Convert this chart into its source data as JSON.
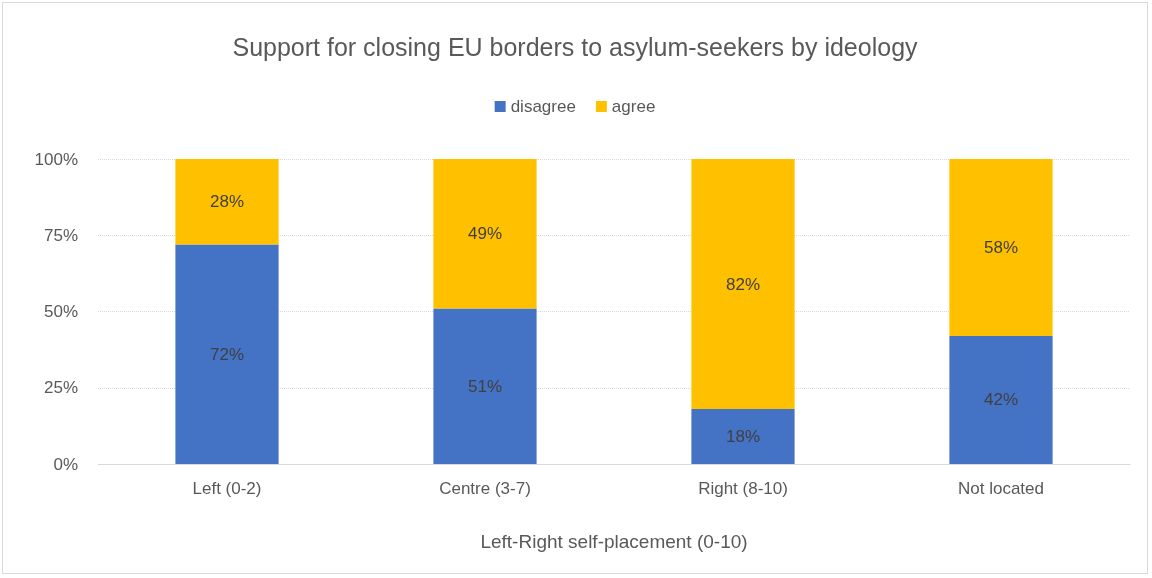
{
  "chart_data": {
    "type": "bar",
    "title": "Support for closing EU borders to asylum-seekers by ideology",
    "xlabel": "Left-Right self-placement (0-10)",
    "categories": [
      "Left (0-2)",
      "Centre (3-7)",
      "Right (8-10)",
      "Not located"
    ],
    "series": [
      {
        "name": "disagree",
        "color": "#4472c4",
        "values": [
          72,
          51,
          18,
          42
        ],
        "value_labels": [
          "72%",
          "51%",
          "18%",
          "42%"
        ]
      },
      {
        "name": "agree",
        "color": "#ffc000",
        "values": [
          28,
          49,
          82,
          58
        ],
        "value_labels": [
          "28%",
          "49%",
          "82%",
          "58%"
        ]
      }
    ],
    "stacked": true,
    "ylim": [
      0,
      100
    ],
    "yticks": [
      {
        "value": 0,
        "label": "0%"
      },
      {
        "value": 25,
        "label": "25%"
      },
      {
        "value": 50,
        "label": "50%"
      },
      {
        "value": 75,
        "label": "75%"
      },
      {
        "value": 100,
        "label": "100%"
      }
    ],
    "grid": "y",
    "legend": "top"
  }
}
